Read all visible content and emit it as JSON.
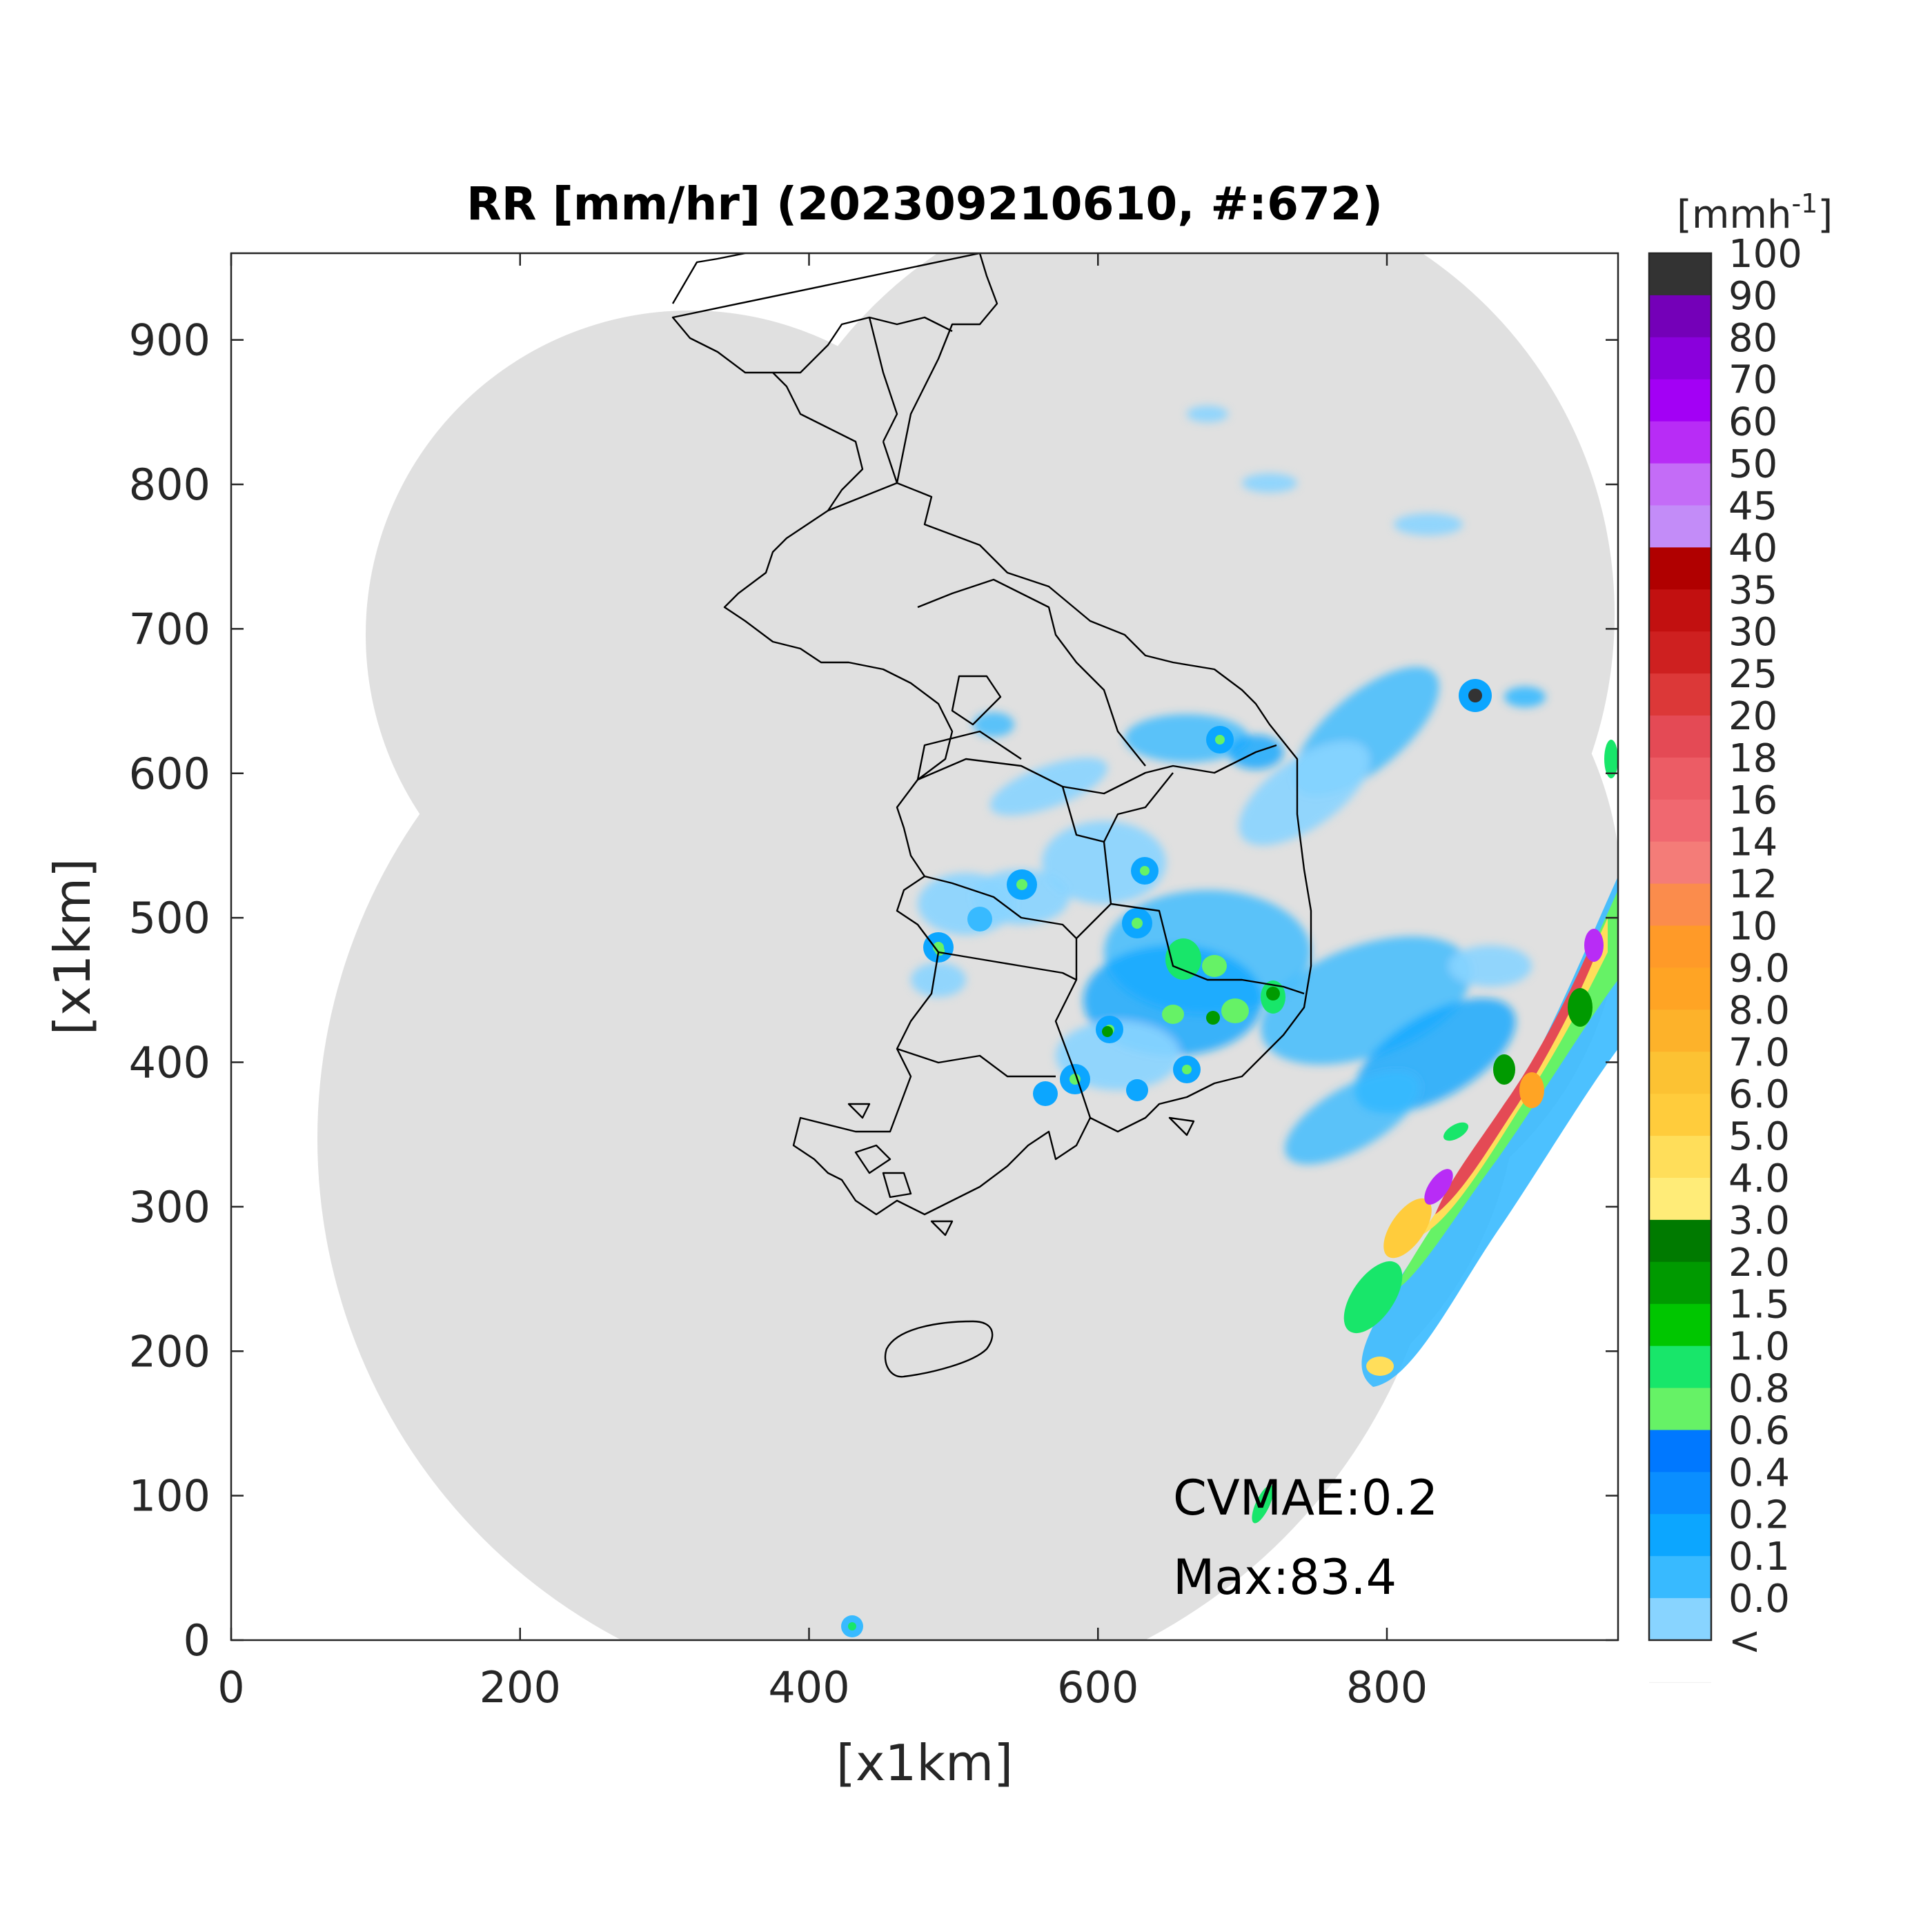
{
  "chart_data": {
    "type": "heatmap",
    "title": "RR [mm/hr] (202309210610, #:672)",
    "xlabel": "[x1km]",
    "ylabel": "[x1km]",
    "xlim": [
      0,
      960
    ],
    "ylim": [
      0,
      960
    ],
    "xticks": [
      0,
      200,
      400,
      600,
      800
    ],
    "yticks": [
      0,
      100,
      200,
      300,
      400,
      500,
      600,
      700,
      800,
      900
    ],
    "xtick_labels": [
      "0",
      "200",
      "400",
      "600",
      "800"
    ],
    "ytick_labels": [
      "0",
      "100",
      "200",
      "300",
      "400",
      "500",
      "600",
      "700",
      "800",
      "900"
    ],
    "colorbar": {
      "unit_label": "[mmh",
      "unit_superscript": "-1",
      "unit_close": "]",
      "tick_labels": [
        "100",
        "90",
        "80",
        "70",
        "60",
        "50",
        "45",
        "40",
        "35",
        "30",
        "25",
        "20",
        "18",
        "16",
        "14",
        "12",
        "10",
        "9.0",
        "8.0",
        "7.0",
        "6.0",
        "5.0",
        "4.0",
        "3.0",
        "2.0",
        "1.5",
        "1.0",
        "0.8",
        "0.6",
        "0.4",
        "0.2",
        "0.1",
        "0.0",
        "<"
      ],
      "colors": [
        "#333333",
        "#7400b8",
        "#8a00dc",
        "#a300f5",
        "#b82cf6",
        "#c46cf7",
        "#c38cf8",
        "#b00000",
        "#c21010",
        "#ce2020",
        "#dc3838",
        "#e44a55",
        "#ec5c65",
        "#f06870",
        "#f47c78",
        "#fb8c4c",
        "#ff9a28",
        "#ffa424",
        "#fdb22a",
        "#fcc233",
        "#ffcc3c",
        "#ffde5a",
        "#ffec78",
        "#007a00",
        "#009a00",
        "#00c600",
        "#18e66a",
        "#66f266",
        "#0078ff",
        "#0a8eff",
        "#0ca6ff",
        "#38baff",
        "#88d4ff",
        "#e0e0e0",
        "#ffffff"
      ]
    },
    "annotations": {
      "cvmae": "CVMAE:0.2",
      "max": "Max:83.4"
    },
    "coverage": {
      "color": "#e0e0e0"
    }
  }
}
